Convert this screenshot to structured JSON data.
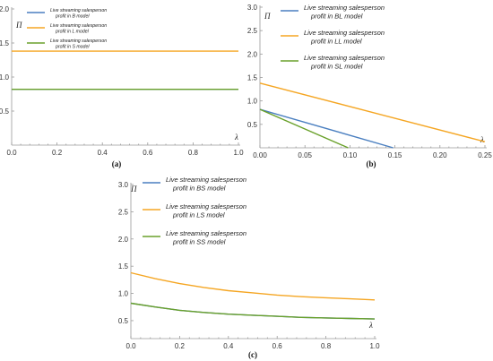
{
  "colors": {
    "blue": "#4a7fc0",
    "orange": "#f5a623",
    "green": "#6aa12b"
  },
  "chart_data": [
    {
      "type": "line",
      "label": "(a)",
      "xlabel": "λ",
      "ylabel": "Π",
      "xlim": [
        0,
        1.0
      ],
      "ylim": [
        0,
        2.0
      ],
      "x_ticks": [
        "0.0",
        "0.2",
        "0.4",
        "0.6",
        "0.8",
        "1.0"
      ],
      "y_ticks": [
        "0.5",
        "1.0",
        "1.5",
        "2.0"
      ],
      "series": [
        {
          "name": "Live streaming salesperson profit in B model",
          "color": "blue",
          "x": [
            0,
            1
          ],
          "y": [
            0.82,
            0.82
          ]
        },
        {
          "name": "Live streaming salesperson profit in L model",
          "color": "orange",
          "x": [
            0,
            1
          ],
          "y": [
            1.38,
            1.38
          ]
        },
        {
          "name": "Live streaming salesperson profit in S model",
          "color": "green",
          "x": [
            0,
            1
          ],
          "y": [
            0.82,
            0.82
          ]
        }
      ]
    },
    {
      "type": "line",
      "label": "(b)",
      "xlabel": "λ",
      "ylabel": "Π",
      "xlim": [
        0,
        0.25
      ],
      "ylim": [
        0,
        3.0
      ],
      "x_ticks": [
        "0.00",
        "0.05",
        "0.10",
        "0.15",
        "0.20",
        "0.25"
      ],
      "y_ticks": [
        "0.5",
        "1.0",
        "1.5",
        "2.0",
        "2.5",
        "3.0"
      ],
      "series": [
        {
          "name": "Live streaming salesperson profit in BL model",
          "color": "blue",
          "x": [
            0,
            0.148
          ],
          "y": [
            0.82,
            0
          ]
        },
        {
          "name": "Live streaming salesperson profit in LL model",
          "color": "orange",
          "x": [
            0,
            0.25
          ],
          "y": [
            1.38,
            0.13
          ]
        },
        {
          "name": "Live streaming salesperson profit in SL model",
          "color": "green",
          "x": [
            0,
            0.098
          ],
          "y": [
            0.82,
            0
          ]
        }
      ]
    },
    {
      "type": "line",
      "label": "(c)",
      "xlabel": "λ",
      "ylabel": "Π",
      "xlim": [
        0,
        1.0
      ],
      "ylim": [
        0.17,
        3.0
      ],
      "x_ticks": [
        "0.0",
        "0.2",
        "0.4",
        "0.6",
        "0.8",
        "1.0"
      ],
      "y_ticks": [
        "0.5",
        "1.0",
        "1.5",
        "2.0",
        "2.5",
        "3.0"
      ],
      "series": [
        {
          "name": "Live streaming salesperson profit in BS model",
          "color": "blue",
          "x": [
            0,
            0.1,
            0.2,
            0.3,
            0.4,
            0.5,
            0.6,
            0.7,
            0.8,
            0.9,
            1.0
          ],
          "y": [
            0.82,
            0.75,
            0.69,
            0.65,
            0.62,
            0.6,
            0.58,
            0.56,
            0.55,
            0.54,
            0.53
          ]
        },
        {
          "name": "Live streaming salesperson profit in LS model",
          "color": "orange",
          "x": [
            0,
            0.1,
            0.2,
            0.3,
            0.4,
            0.5,
            0.6,
            0.7,
            0.8,
            0.9,
            1.0
          ],
          "y": [
            1.38,
            1.27,
            1.18,
            1.11,
            1.05,
            1.01,
            0.97,
            0.94,
            0.92,
            0.9,
            0.88
          ]
        },
        {
          "name": "Live streaming salesperson profit in SS model",
          "color": "green",
          "x": [
            0,
            0.1,
            0.2,
            0.3,
            0.4,
            0.5,
            0.6,
            0.7,
            0.8,
            0.9,
            1.0
          ],
          "y": [
            0.82,
            0.75,
            0.69,
            0.65,
            0.62,
            0.6,
            0.58,
            0.56,
            0.55,
            0.54,
            0.53
          ]
        }
      ]
    }
  ]
}
